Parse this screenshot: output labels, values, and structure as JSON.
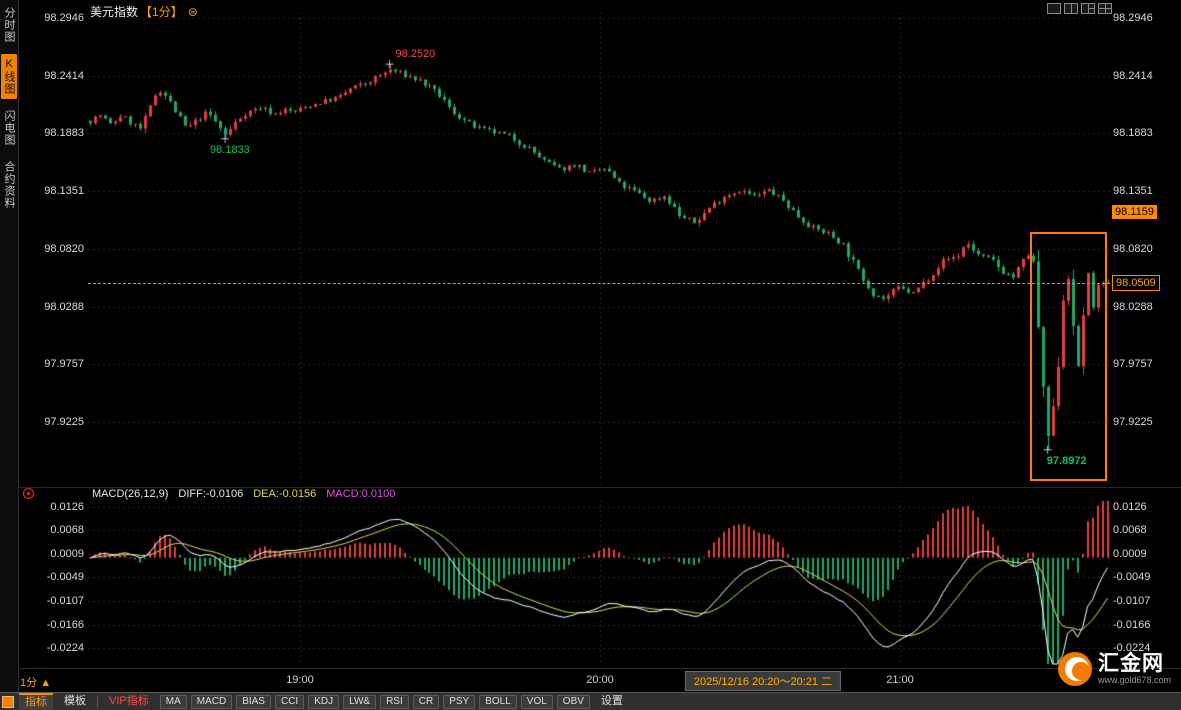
{
  "colors": {
    "up": "#e04040",
    "down": "#1faa6a",
    "accent": "#ff8a00",
    "diff_line": "#ffffff",
    "dea_line": "#e2d84e",
    "macd_text": "#e14fe1",
    "axis_text": "#d9d9d9"
  },
  "sidebar": {
    "items": [
      {
        "key": "time-chart",
        "label": "分时图",
        "active": false
      },
      {
        "key": "kline-chart",
        "label": "K线图",
        "active": true
      },
      {
        "key": "lightning-chart",
        "label": "闪电图",
        "active": false
      },
      {
        "key": "contract-info",
        "label": "合约资料",
        "active": false
      }
    ]
  },
  "header": {
    "title_main": "美元指数",
    "title_period": "【1分】",
    "gear_glyph": "⊜",
    "layout_icons": [
      "layout-single-icon",
      "layout-split-2-icon",
      "layout-split-3-icon",
      "layout-split-4-icon"
    ]
  },
  "main_chart": {
    "axis_labels": [
      "98.2946",
      "98.2414",
      "98.1883",
      "98.1351",
      "98.0820",
      "98.0288",
      "97.9757",
      "97.9225"
    ],
    "high_badge": "98.1159",
    "current_price": "98.0509",
    "annotations": {
      "high": "98.2520",
      "low": "98.1833",
      "box_low": "97.8972"
    },
    "highlight_box": {
      "f_start": 0.9246,
      "f_end": 0.994,
      "top_price": 98.098,
      "bottom_price": 97.868
    }
  },
  "macd_panel": {
    "title": "MACD(26,12,9)",
    "diff": "DIFF:-0.0106",
    "dea": "DEA:-0.0156",
    "macd": "MACD:0.0100",
    "axis_labels": [
      "0.0126",
      "0.0068",
      "0.0009",
      "-0.0049",
      "-0.0107",
      "-0.0166",
      "-0.0224"
    ]
  },
  "time_axis": {
    "period": "1分",
    "period_arrow": "▲",
    "labels": [
      "19:00",
      "20:00",
      "21:00"
    ],
    "range_label": "2025/12/16 20:20～20:21 二"
  },
  "toolbar": {
    "tab_indicator": "指标",
    "tab_template": "模板",
    "tab_vip": "VIP指标",
    "buttons": [
      "MA",
      "MACD",
      "BIAS",
      "CCI",
      "KDJ",
      "LW&",
      "RSI",
      "CR",
      "PSY",
      "BOLL",
      "VOL",
      "OBV"
    ],
    "settings": "设置"
  },
  "watermark": {
    "brand": "汇金网",
    "url": "www.gold678.com"
  },
  "chart_data": {
    "type": "candlestick",
    "instrument": "美元指数",
    "interval": "1分",
    "candle_count": 205,
    "current_price": 98.0509,
    "visible_high": 98.252,
    "visible_low": 97.8972,
    "price_axis_range": [
      97.862,
      98.3
    ],
    "macd_axis_range": [
      -0.0266,
      0.0143
    ],
    "time_gridlines_f": [
      0.2074,
      0.501,
      0.7945
    ],
    "marked": [
      {
        "key": "high",
        "kind": "high",
        "f": 0.295,
        "price": 98.252
      },
      {
        "key": "low",
        "kind": "low",
        "f": 0.133,
        "price": 98.1833
      },
      {
        "key": "box_low",
        "kind": "low",
        "f": 0.94,
        "price": 97.8972
      }
    ],
    "price_anchors": [
      [
        0.0,
        98.2
      ],
      [
        0.01,
        98.205
      ],
      [
        0.02,
        98.196
      ],
      [
        0.03,
        98.205
      ],
      [
        0.04,
        98.198
      ],
      [
        0.05,
        98.192
      ],
      [
        0.06,
        98.214
      ],
      [
        0.066,
        98.23
      ],
      [
        0.075,
        98.222
      ],
      [
        0.085,
        98.206
      ],
      [
        0.095,
        98.192
      ],
      [
        0.105,
        98.201
      ],
      [
        0.115,
        98.208
      ],
      [
        0.125,
        98.196
      ],
      [
        0.133,
        98.186
      ],
      [
        0.14,
        98.196
      ],
      [
        0.15,
        98.206
      ],
      [
        0.16,
        98.21
      ],
      [
        0.168,
        98.212
      ],
      [
        0.18,
        98.206
      ],
      [
        0.19,
        98.21
      ],
      [
        0.2,
        98.208
      ],
      [
        0.215,
        98.214
      ],
      [
        0.23,
        98.218
      ],
      [
        0.245,
        98.222
      ],
      [
        0.256,
        98.23
      ],
      [
        0.27,
        98.234
      ],
      [
        0.285,
        98.242
      ],
      [
        0.295,
        98.247
      ],
      [
        0.305,
        98.243
      ],
      [
        0.315,
        98.24
      ],
      [
        0.325,
        98.236
      ],
      [
        0.335,
        98.229
      ],
      [
        0.345,
        98.222
      ],
      [
        0.354,
        98.21
      ],
      [
        0.364,
        98.203
      ],
      [
        0.374,
        98.196
      ],
      [
        0.384,
        98.192
      ],
      [
        0.393,
        98.19
      ],
      [
        0.403,
        98.188
      ],
      [
        0.413,
        98.185
      ],
      [
        0.422,
        98.18
      ],
      [
        0.432,
        98.174
      ],
      [
        0.447,
        98.162
      ],
      [
        0.462,
        98.155
      ],
      [
        0.477,
        98.16
      ],
      [
        0.491,
        98.151
      ],
      [
        0.506,
        98.156
      ],
      [
        0.52,
        98.141
      ],
      [
        0.535,
        98.135
      ],
      [
        0.55,
        98.126
      ],
      [
        0.565,
        98.131
      ],
      [
        0.579,
        98.112
      ],
      [
        0.594,
        98.106
      ],
      [
        0.609,
        98.121
      ],
      [
        0.623,
        98.131
      ],
      [
        0.638,
        98.136
      ],
      [
        0.653,
        98.13
      ],
      [
        0.667,
        98.136
      ],
      [
        0.682,
        98.126
      ],
      [
        0.697,
        98.111
      ],
      [
        0.711,
        98.101
      ],
      [
        0.726,
        98.096
      ],
      [
        0.74,
        98.086
      ],
      [
        0.755,
        98.061
      ],
      [
        0.77,
        98.041
      ],
      [
        0.78,
        98.036
      ],
      [
        0.794,
        98.046
      ],
      [
        0.809,
        98.041
      ],
      [
        0.824,
        98.056
      ],
      [
        0.838,
        98.071
      ],
      [
        0.853,
        98.076
      ],
      [
        0.861,
        98.088
      ],
      [
        0.873,
        98.076
      ],
      [
        0.887,
        98.071
      ],
      [
        0.897,
        98.061
      ],
      [
        0.907,
        98.056
      ],
      [
        0.917,
        98.071
      ],
      [
        0.925,
        98.081
      ],
      [
        0.93,
        98.03
      ],
      [
        0.935,
        97.96
      ],
      [
        0.94,
        97.905
      ],
      [
        0.946,
        97.93
      ],
      [
        0.953,
        98.0
      ],
      [
        0.959,
        98.078
      ],
      [
        0.966,
        98.0
      ],
      [
        0.971,
        97.972
      ],
      [
        0.975,
        98.02
      ],
      [
        0.98,
        98.06
      ],
      [
        0.985,
        98.03
      ],
      [
        0.99,
        98.046
      ],
      [
        1.0,
        98.051
      ]
    ]
  }
}
